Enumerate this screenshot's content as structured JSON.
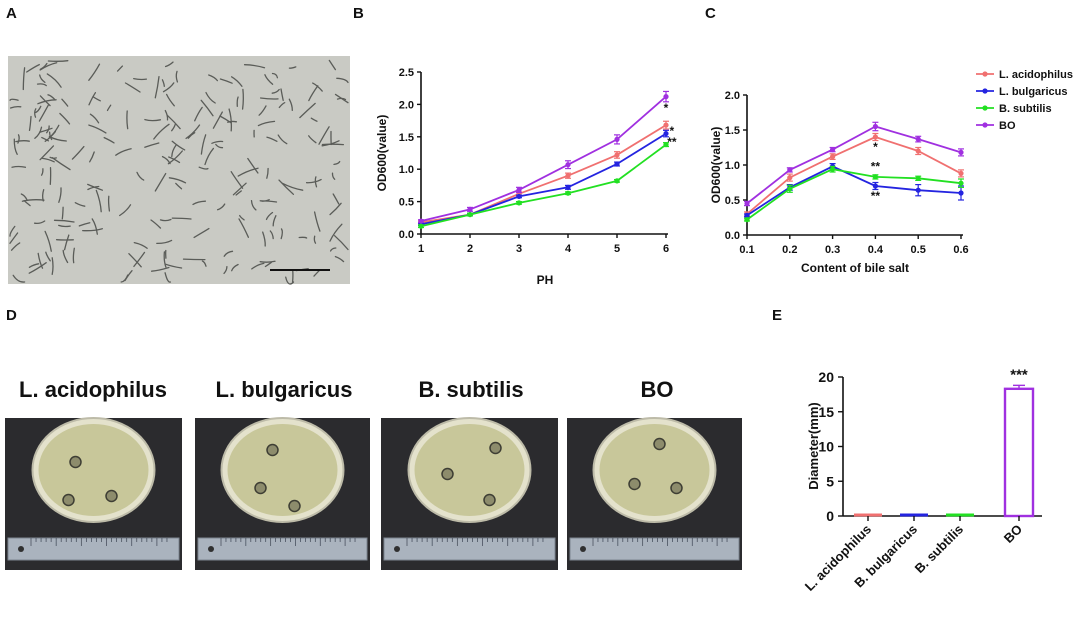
{
  "panel_labels": [
    "A",
    "B",
    "C",
    "D",
    "E"
  ],
  "colors": {
    "L. acidophilus": "#f07070",
    "L. bulgaricus": "#2424e0",
    "B. subtilis": "#22e022",
    "BO": "#a030e0"
  },
  "plates": [
    {
      "name": "L. acidophilus"
    },
    {
      "name": "L. bulgaricus"
    },
    {
      "name": "B. subtilis"
    },
    {
      "name": "BO"
    }
  ],
  "chart_data": [
    {
      "panel": "B",
      "type": "line",
      "x": [
        1,
        2,
        3,
        4,
        5,
        6
      ],
      "xlabel": "PH",
      "ylabel": "OD600(value)",
      "xlim": [
        1,
        6
      ],
      "ylim": [
        0,
        2.5
      ],
      "yticks": [
        "0.0",
        "0.5",
        "1.0",
        "1.5",
        "2.0",
        "2.5"
      ],
      "xticks": [
        "1",
        "2",
        "3",
        "4",
        "5",
        "6"
      ],
      "series": [
        {
          "name": "L. acidophilus",
          "values": [
            0.18,
            0.3,
            0.62,
            0.9,
            1.22,
            1.68
          ],
          "err": [
            0.02,
            0.02,
            0.03,
            0.04,
            0.05,
            0.06
          ]
        },
        {
          "name": "L. bulgaricus",
          "values": [
            0.15,
            0.3,
            0.58,
            0.72,
            1.08,
            1.55
          ],
          "err": [
            0.02,
            0.02,
            0.02,
            0.03,
            0.03,
            0.05
          ]
        },
        {
          "name": "B. subtilis",
          "values": [
            0.12,
            0.3,
            0.48,
            0.63,
            0.82,
            1.38
          ],
          "err": [
            0.02,
            0.02,
            0.02,
            0.02,
            0.02,
            0.03
          ]
        },
        {
          "name": "BO",
          "values": [
            0.2,
            0.38,
            0.68,
            1.07,
            1.46,
            2.12
          ],
          "err": [
            0.02,
            0.03,
            0.04,
            0.06,
            0.07,
            0.08
          ]
        }
      ],
      "annotations": [
        {
          "x": 6,
          "y": 1.88,
          "text": "*"
        },
        {
          "x": 6.12,
          "y": 1.53,
          "text": "*"
        },
        {
          "x": 6.12,
          "y": 1.36,
          "text": "**"
        }
      ]
    },
    {
      "panel": "C",
      "type": "line",
      "x": [
        0.1,
        0.2,
        0.3,
        0.4,
        0.5,
        0.6
      ],
      "xlabel": "Content of bile salt",
      "ylabel": "OD600(value)",
      "xlim": [
        0.1,
        0.6
      ],
      "ylim": [
        0,
        2.0
      ],
      "yticks": [
        "0.0",
        "0.5",
        "1.0",
        "1.5",
        "2.0"
      ],
      "xticks": [
        "0.1",
        "0.2",
        "0.3",
        "0.4",
        "0.5",
        "0.6"
      ],
      "legend_position": "right",
      "series": [
        {
          "name": "L. acidophilus",
          "values": [
            0.3,
            0.82,
            1.12,
            1.4,
            1.2,
            0.88
          ],
          "err": [
            0.03,
            0.05,
            0.04,
            0.05,
            0.05,
            0.05
          ]
        },
        {
          "name": "L. bulgaricus",
          "values": [
            0.28,
            0.68,
            0.98,
            0.7,
            0.64,
            0.6
          ],
          "err": [
            0.02,
            0.04,
            0.04,
            0.05,
            0.08,
            0.1
          ]
        },
        {
          "name": "B. subtilis",
          "values": [
            0.22,
            0.66,
            0.94,
            0.83,
            0.81,
            0.74
          ],
          "err": [
            0.02,
            0.05,
            0.04,
            0.03,
            0.03,
            0.06
          ]
        },
        {
          "name": "BO",
          "values": [
            0.45,
            0.93,
            1.22,
            1.55,
            1.37,
            1.18
          ],
          "err": [
            0.03,
            0.03,
            0.03,
            0.06,
            0.04,
            0.05
          ]
        }
      ],
      "annotations": [
        {
          "x": 0.4,
          "y": 1.2,
          "text": "*"
        },
        {
          "x": 0.4,
          "y": 0.92,
          "text": "**"
        },
        {
          "x": 0.4,
          "y": 0.5,
          "text": "**"
        }
      ]
    },
    {
      "panel": "E",
      "type": "bar",
      "categories": [
        "L. acidophilus",
        "B. bulgaricus",
        "B. subtilis",
        "BO"
      ],
      "values": [
        0,
        0,
        0,
        18.3
      ],
      "err": [
        0,
        0,
        0,
        0.5
      ],
      "ylabel": "Diameter(mm)",
      "ylim": [
        0,
        20
      ],
      "yticks": [
        "0",
        "5",
        "10",
        "15",
        "20"
      ],
      "annotations": [
        {
          "category": "BO",
          "text": "***"
        }
      ]
    }
  ]
}
